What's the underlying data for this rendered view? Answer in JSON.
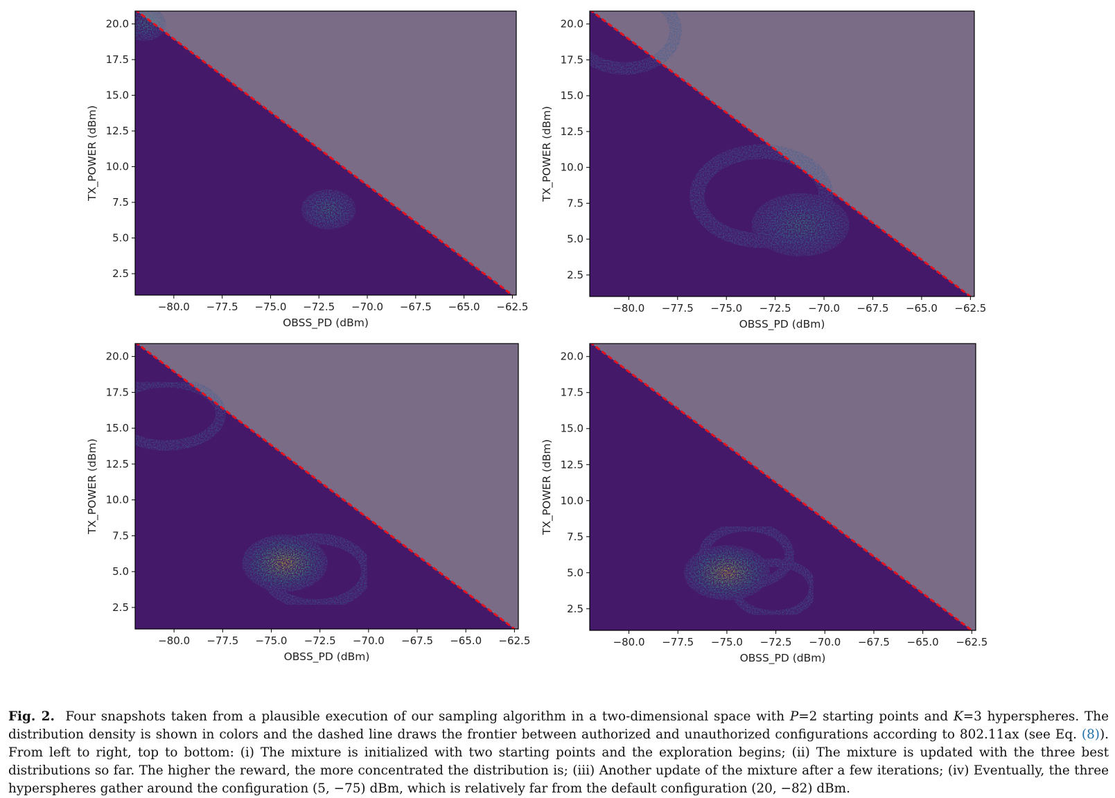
{
  "caption": {
    "label": "Fig. 2.",
    "text_1": "Four snapshots taken from a plausible execution of our sampling algorithm in a two-dimensional space with ",
    "p_var": "P",
    "p_val": "=2 starting points and ",
    "k_var": "K",
    "k_val": "=3 hyperspheres. The distribution density is shown in colors and the dashed line draws the frontier between authorized and unauthorized configurations according to 802.11ax (see Eq. ",
    "eq_ref": "(8)",
    "text_2": "). From left to right, top to bottom: (i) The mixture is initialized with two starting points and the exploration begins; (ii) The mixture is updated with the three best distributions so far. The higher the reward, the more concentrated the distribution is; (iii) Another update of the mixture after a few iterations; (iv) Eventually, the three hyperspheres gather around the configuration (5, −75) dBm, which is relatively far from the default configuration (20, −82) dBm."
  },
  "colors": {
    "background": "#451969",
    "forbidden": "#7a6c86",
    "frontier": "#e8121e",
    "density_low": "#3b5f95",
    "density_mid": "#23908e",
    "density_high": "#b8de2c"
  },
  "chart_data": [
    {
      "type": "heatmap",
      "title": "",
      "xlabel": "OBSS_PD (dBm)",
      "ylabel": "TX_POWER (dBm)",
      "xlim": [
        -82,
        -62.3
      ],
      "ylim": [
        1.0,
        20.9
      ],
      "x_ticks": [
        -80.0,
        -77.5,
        -75.0,
        -72.5,
        -70.0,
        -67.5,
        -65.0,
        -62.5
      ],
      "x_tick_labels": [
        "−80.0",
        "−77.5",
        "−75.0",
        "−72.5",
        "−70.0",
        "−67.5",
        "−65.0",
        "−62.5"
      ],
      "y_ticks": [
        2.5,
        5.0,
        7.5,
        10.0,
        12.5,
        15.0,
        17.5,
        20.0
      ],
      "y_tick_labels": [
        "2.5",
        "5.0",
        "7.5",
        "10.0",
        "12.5",
        "15.0",
        "17.5",
        "20.0"
      ],
      "frontier": {
        "style": "dashed",
        "from": [
          -82,
          21
        ],
        "to": [
          -62.5,
          1
        ]
      },
      "distributions": [
        {
          "shape": "blob",
          "center_x": -81.5,
          "center_y": 20.0,
          "radius_x": 1.1,
          "radius_y": 1.2,
          "density": "mid"
        },
        {
          "shape": "blob",
          "center_x": -72.0,
          "center_y": 7.0,
          "radius_x": 1.4,
          "radius_y": 1.4,
          "density": "mid"
        }
      ]
    },
    {
      "type": "heatmap",
      "title": "",
      "xlabel": "OBSS_PD (dBm)",
      "ylabel": "TX_POWER (dBm)",
      "xlim": [
        -82,
        -62.3
      ],
      "ylim": [
        1.0,
        20.9
      ],
      "x_ticks": [
        -80.0,
        -77.5,
        -75.0,
        -72.5,
        -70.0,
        -67.5,
        -65.0,
        -62.5
      ],
      "x_tick_labels": [
        "−80.0",
        "−77.5",
        "−75.0",
        "−72.5",
        "−70.0",
        "−67.5",
        "−65.0",
        "−62.5"
      ],
      "y_ticks": [
        2.5,
        5.0,
        7.5,
        10.0,
        12.5,
        15.0,
        17.5,
        20.0
      ],
      "y_tick_labels": [
        "2.5",
        "5.0",
        "7.5",
        "10.0",
        "12.5",
        "15.0",
        "17.5",
        "20.0"
      ],
      "frontier": {
        "style": "dashed",
        "from": [
          -82,
          21
        ],
        "to": [
          -62.5,
          1
        ]
      },
      "distributions": [
        {
          "shape": "ring",
          "center_x": -80.2,
          "center_y": 19.5,
          "radius_x": 2.6,
          "radius_y": 2.6,
          "density": "low"
        },
        {
          "shape": "ring",
          "center_x": -73.2,
          "center_y": 8.0,
          "radius_x": 3.3,
          "radius_y": 3.1,
          "density": "low"
        },
        {
          "shape": "blob",
          "center_x": -71.2,
          "center_y": 6.0,
          "radius_x": 2.5,
          "radius_y": 2.2,
          "density": "mid"
        }
      ]
    },
    {
      "type": "heatmap",
      "title": "",
      "xlabel": "OBSS_PD (dBm)",
      "ylabel": "TX_POWER (dBm)",
      "xlim": [
        -82,
        -62.3
      ],
      "ylim": [
        1.0,
        20.9
      ],
      "x_ticks": [
        -80.0,
        -77.5,
        -75.0,
        -72.5,
        -70.0,
        -67.5,
        -65.0,
        -62.5
      ],
      "x_tick_labels": [
        "−80.0",
        "−77.5",
        "−75.0",
        "−72.5",
        "−70.0",
        "−67.5",
        "−65.0",
        "−62.5"
      ],
      "y_ticks": [
        2.5,
        5.0,
        7.5,
        10.0,
        12.5,
        15.0,
        17.5,
        20.0
      ],
      "y_tick_labels": [
        "2.5",
        "5.0",
        "7.5",
        "10.0",
        "12.5",
        "15.0",
        "17.5",
        "20.0"
      ],
      "frontier": {
        "style": "dashed",
        "from": [
          -82,
          21
        ],
        "to": [
          -62.5,
          1
        ]
      },
      "distributions": [
        {
          "shape": "ring",
          "center_x": -80.4,
          "center_y": 16.0,
          "radius_x": 2.8,
          "radius_y": 2.2,
          "density": "low"
        },
        {
          "shape": "ring",
          "center_x": -72.7,
          "center_y": 5.0,
          "radius_x": 2.6,
          "radius_y": 2.3,
          "density": "low"
        },
        {
          "shape": "blob",
          "center_x": -74.3,
          "center_y": 5.6,
          "radius_x": 2.2,
          "radius_y": 2.0,
          "density": "high"
        }
      ]
    },
    {
      "type": "heatmap",
      "title": "",
      "xlabel": "OBSS_PD (dBm)",
      "ylabel": "TX_POWER (dBm)",
      "xlim": [
        -82,
        -62.3
      ],
      "ylim": [
        1.0,
        20.9
      ],
      "x_ticks": [
        -80.0,
        -77.5,
        -75.0,
        -72.5,
        -70.0,
        -67.5,
        -65.0,
        -62.5
      ],
      "x_tick_labels": [
        "−80.0",
        "−77.5",
        "−75.0",
        "−72.5",
        "−70.0",
        "−67.5",
        "−65.0",
        "−62.5"
      ],
      "y_ticks": [
        2.5,
        5.0,
        7.5,
        10.0,
        12.5,
        15.0,
        17.5,
        20.0
      ],
      "y_tick_labels": [
        "2.5",
        "5.0",
        "7.5",
        "10.0",
        "12.5",
        "15.0",
        "17.5",
        "20.0"
      ],
      "frontier": {
        "style": "dashed",
        "from": [
          -82,
          21
        ],
        "to": [
          -62.5,
          1
        ]
      },
      "distributions": [
        {
          "shape": "ring",
          "center_x": -74.0,
          "center_y": 6.2,
          "radius_x": 2.2,
          "radius_y": 2.0,
          "density": "low"
        },
        {
          "shape": "ring",
          "center_x": -72.6,
          "center_y": 3.9,
          "radius_x": 2.0,
          "radius_y": 1.8,
          "density": "low"
        },
        {
          "shape": "blob",
          "center_x": -75.0,
          "center_y": 5.0,
          "radius_x": 2.2,
          "radius_y": 1.9,
          "density": "high"
        }
      ]
    }
  ]
}
